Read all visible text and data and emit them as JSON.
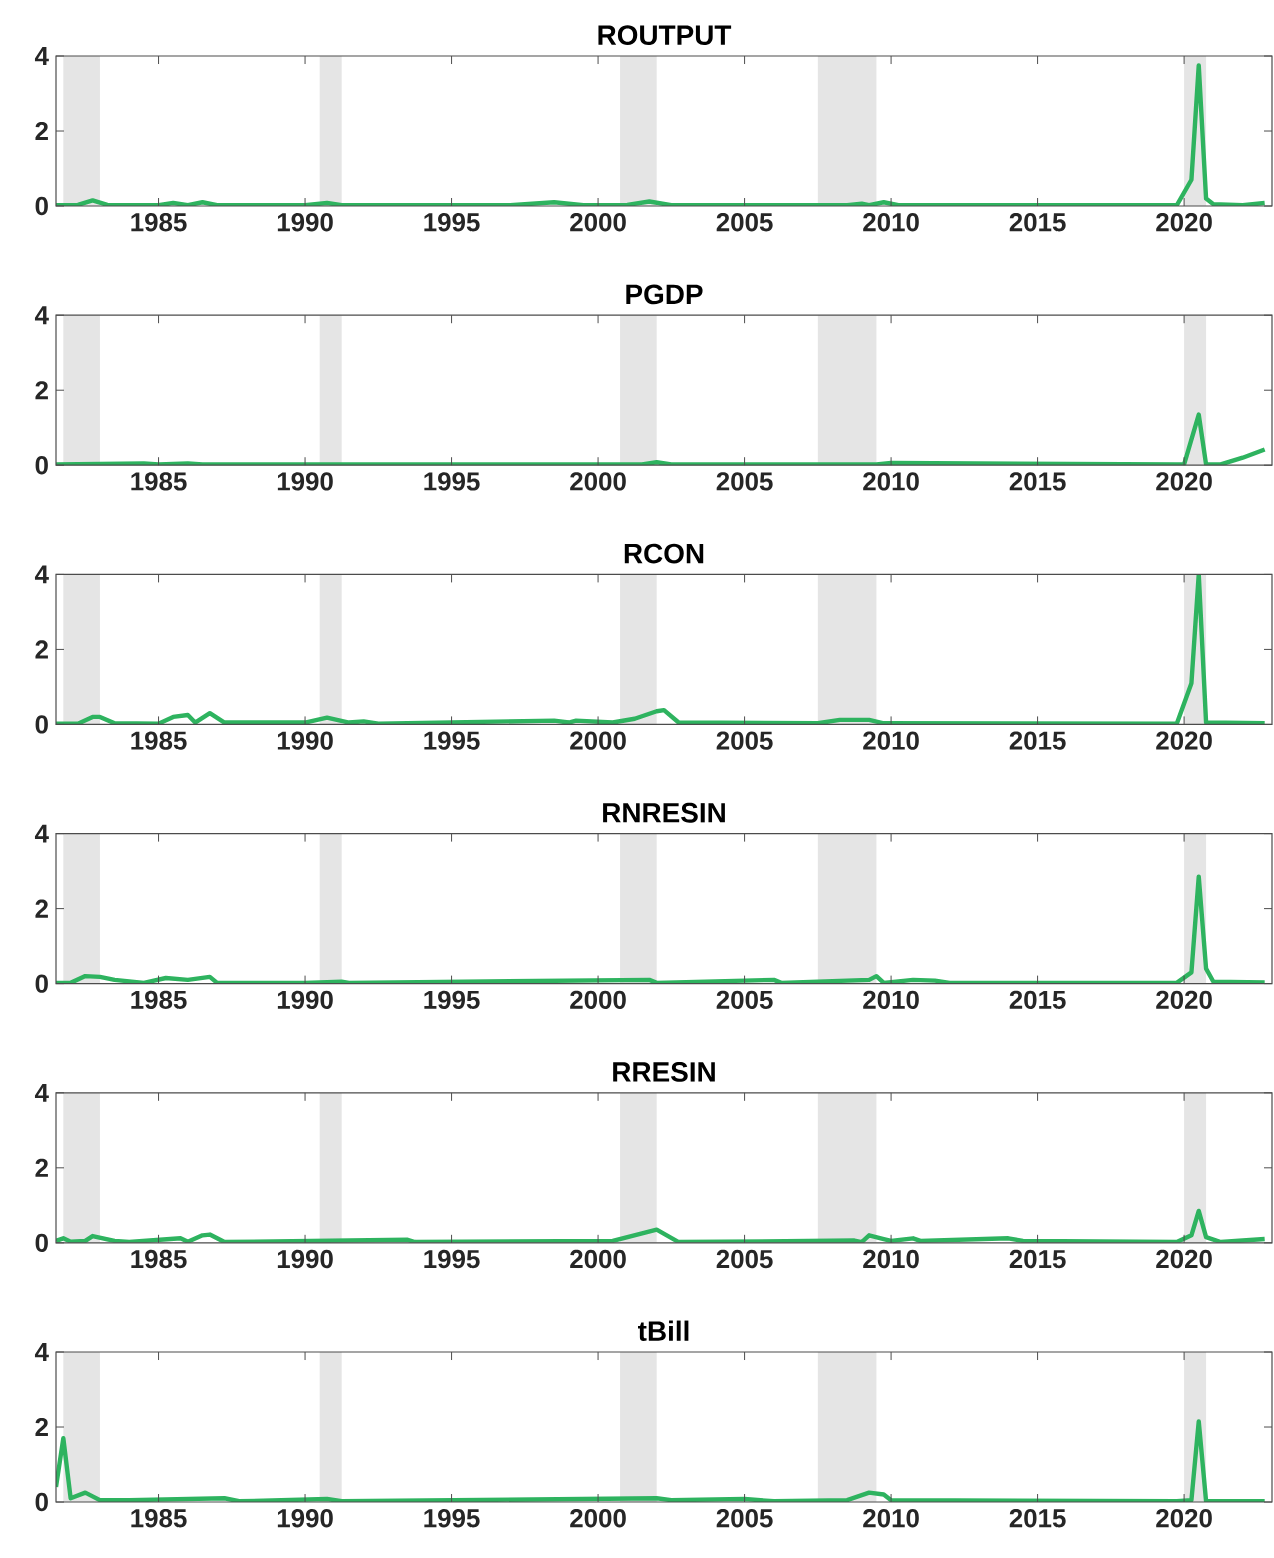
{
  "chart_data": [
    {
      "type": "line",
      "title": "ROUTPUT",
      "xlim": [
        1981.5,
        2023
      ],
      "xticks": [
        1985,
        1990,
        1995,
        2000,
        2005,
        2010,
        2015,
        2020
      ],
      "ylim": [
        0,
        4
      ],
      "yticks": [
        0,
        2,
        4
      ],
      "grid": false,
      "bands": [
        {
          "axis": "x",
          "from": 1981.75,
          "to": 1983.0,
          "color": "#e5e5e5"
        },
        {
          "axis": "x",
          "from": 1990.5,
          "to": 1991.25,
          "color": "#e5e5e5"
        },
        {
          "axis": "x",
          "from": 2000.75,
          "to": 2002.0,
          "color": "#e5e5e5"
        },
        {
          "axis": "x",
          "from": 2007.5,
          "to": 2009.5,
          "color": "#e5e5e5"
        },
        {
          "axis": "x",
          "from": 2020.0,
          "to": 2020.75,
          "color": "#e5e5e5"
        }
      ],
      "color": "#2eb35f",
      "x": [
        1981.5,
        1982.25,
        1982.75,
        1983.25,
        1985,
        1985.5,
        1986,
        1986.5,
        1987,
        1990,
        1990.75,
        1991.25,
        1997,
        1998.5,
        1999.5,
        2001,
        2001.75,
        2002.5,
        2008.5,
        2009,
        2009.25,
        2009.75,
        2010.25,
        2019.75,
        2020.25,
        2020.5,
        2020.75,
        2021,
        2022,
        2022.75
      ],
      "values": [
        0.02,
        0.03,
        0.15,
        0.03,
        0.02,
        0.08,
        0.02,
        0.1,
        0.02,
        0.02,
        0.08,
        0.02,
        0.02,
        0.1,
        0.02,
        0.03,
        0.12,
        0.02,
        0.02,
        0.06,
        0.02,
        0.1,
        0.02,
        0.02,
        0.7,
        3.75,
        0.2,
        0.05,
        0.02,
        0.08
      ]
    },
    {
      "type": "line",
      "title": "PGDP",
      "xlim": [
        1981.5,
        2023
      ],
      "xticks": [
        1985,
        1990,
        1995,
        2000,
        2005,
        2010,
        2015,
        2020
      ],
      "ylim": [
        0,
        4
      ],
      "yticks": [
        0,
        2,
        4
      ],
      "grid": false,
      "bands": [
        {
          "axis": "x",
          "from": 1981.75,
          "to": 1983.0,
          "color": "#e5e5e5"
        },
        {
          "axis": "x",
          "from": 1990.5,
          "to": 1991.25,
          "color": "#e5e5e5"
        },
        {
          "axis": "x",
          "from": 2000.75,
          "to": 2002.0,
          "color": "#e5e5e5"
        },
        {
          "axis": "x",
          "from": 2007.5,
          "to": 2009.5,
          "color": "#e5e5e5"
        },
        {
          "axis": "x",
          "from": 2020.0,
          "to": 2020.75,
          "color": "#e5e5e5"
        }
      ],
      "color": "#2eb35f",
      "x": [
        1981.5,
        1984.5,
        1985,
        1986,
        1986.5,
        2001.5,
        2002,
        2002.5,
        2009.5,
        2010,
        2019.75,
        2020.0,
        2020.5,
        2020.75,
        2021.25,
        2022,
        2022.75
      ],
      "values": [
        0.02,
        0.05,
        0.02,
        0.05,
        0.02,
        0.02,
        0.08,
        0.02,
        0.02,
        0.06,
        0.02,
        0.02,
        1.35,
        0.02,
        0.02,
        0.2,
        0.42
      ]
    },
    {
      "type": "line",
      "title": "RCON",
      "xlim": [
        1981.5,
        2023
      ],
      "xticks": [
        1985,
        1990,
        1995,
        2000,
        2005,
        2010,
        2015,
        2020
      ],
      "ylim": [
        0,
        4
      ],
      "yticks": [
        0,
        2,
        4
      ],
      "grid": false,
      "bands": [
        {
          "axis": "x",
          "from": 1981.75,
          "to": 1983.0,
          "color": "#e5e5e5"
        },
        {
          "axis": "x",
          "from": 1990.5,
          "to": 1991.25,
          "color": "#e5e5e5"
        },
        {
          "axis": "x",
          "from": 2000.75,
          "to": 2002.0,
          "color": "#e5e5e5"
        },
        {
          "axis": "x",
          "from": 2007.5,
          "to": 2009.5,
          "color": "#e5e5e5"
        },
        {
          "axis": "x",
          "from": 2020.0,
          "to": 2020.75,
          "color": "#e5e5e5"
        }
      ],
      "color": "#2eb35f",
      "x": [
        1981.5,
        1982.25,
        1982.75,
        1983,
        1983.5,
        1985,
        1985.5,
        1986,
        1986.25,
        1986.75,
        1987.25,
        1990,
        1990.75,
        1991.5,
        1992,
        1992.5,
        1998.5,
        1999,
        1999.25,
        2000.5,
        2001.25,
        2002,
        2002.25,
        2002.75,
        2007.5,
        2008.25,
        2009.25,
        2009.75,
        2019.75,
        2020.25,
        2020.5,
        2020.75,
        2022.75
      ],
      "values": [
        0.02,
        0.02,
        0.2,
        0.2,
        0.03,
        0.02,
        0.2,
        0.25,
        0.05,
        0.3,
        0.05,
        0.05,
        0.18,
        0.05,
        0.08,
        0.02,
        0.1,
        0.05,
        0.1,
        0.05,
        0.15,
        0.35,
        0.38,
        0.05,
        0.03,
        0.12,
        0.12,
        0.03,
        0.02,
        1.1,
        4,
        0.05,
        0.03
      ]
    },
    {
      "type": "line",
      "title": "RNRESIN",
      "xlim": [
        1981.5,
        2023
      ],
      "xticks": [
        1985,
        1990,
        1995,
        2000,
        2005,
        2010,
        2015,
        2020
      ],
      "ylim": [
        0,
        4
      ],
      "yticks": [
        0,
        2,
        4
      ],
      "grid": false,
      "bands": [
        {
          "axis": "x",
          "from": 1981.75,
          "to": 1983.0,
          "color": "#e5e5e5"
        },
        {
          "axis": "x",
          "from": 1990.5,
          "to": 1991.25,
          "color": "#e5e5e5"
        },
        {
          "axis": "x",
          "from": 2000.75,
          "to": 2002.0,
          "color": "#e5e5e5"
        },
        {
          "axis": "x",
          "from": 2007.5,
          "to": 2009.5,
          "color": "#e5e5e5"
        },
        {
          "axis": "x",
          "from": 2020.0,
          "to": 2020.75,
          "color": "#e5e5e5"
        }
      ],
      "color": "#2eb35f",
      "x": [
        1981.5,
        1982,
        1982.5,
        1983,
        1983.5,
        1984.5,
        1985.25,
        1986,
        1986.75,
        1987,
        1990,
        1991.25,
        1991.5,
        2001.75,
        2002,
        2006,
        2006.25,
        2009.25,
        2009.5,
        2009.75,
        2010.75,
        2011.5,
        2012,
        2019.75,
        2020.25,
        2020.5,
        2020.75,
        2021,
        2022.75
      ],
      "values": [
        0.02,
        0.02,
        0.2,
        0.18,
        0.1,
        0.02,
        0.15,
        0.1,
        0.18,
        0.02,
        0.02,
        0.05,
        0.02,
        0.1,
        0.02,
        0.1,
        0.02,
        0.1,
        0.2,
        0.02,
        0.1,
        0.08,
        0.02,
        0.02,
        0.3,
        2.85,
        0.4,
        0.05,
        0.03
      ]
    },
    {
      "type": "line",
      "title": "RRESIN",
      "xlim": [
        1981.5,
        2023
      ],
      "xticks": [
        1985,
        1990,
        1995,
        2000,
        2005,
        2010,
        2015,
        2020
      ],
      "ylim": [
        0,
        4
      ],
      "yticks": [
        0,
        2,
        4
      ],
      "grid": false,
      "bands": [
        {
          "axis": "x",
          "from": 1981.75,
          "to": 1983.0,
          "color": "#e5e5e5"
        },
        {
          "axis": "x",
          "from": 1990.5,
          "to": 1991.25,
          "color": "#e5e5e5"
        },
        {
          "axis": "x",
          "from": 2000.75,
          "to": 2002.0,
          "color": "#e5e5e5"
        },
        {
          "axis": "x",
          "from": 2007.5,
          "to": 2009.5,
          "color": "#e5e5e5"
        },
        {
          "axis": "x",
          "from": 2020.0,
          "to": 2020.75,
          "color": "#e5e5e5"
        }
      ],
      "color": "#2eb35f",
      "x": [
        1981.5,
        1981.75,
        1982,
        1982.5,
        1982.75,
        1983.5,
        1984,
        1985.75,
        1986,
        1986.5,
        1986.75,
        1987.25,
        1993.5,
        1993.75,
        2000.5,
        2001.25,
        2002,
        2002.75,
        2008.75,
        2009,
        2009.25,
        2009.75,
        2010,
        2010.75,
        2011,
        2014,
        2014.5,
        2019.75,
        2020.25,
        2020.5,
        2020.75,
        2021.25,
        2022.75
      ],
      "values": [
        0.05,
        0.12,
        0.03,
        0.05,
        0.18,
        0.05,
        0.02,
        0.12,
        0.03,
        0.2,
        0.22,
        0.02,
        0.08,
        0.02,
        0.05,
        0.2,
        0.35,
        0.02,
        0.06,
        0.02,
        0.2,
        0.1,
        0.05,
        0.12,
        0.05,
        0.12,
        0.05,
        0.02,
        0.2,
        0.85,
        0.15,
        0.02,
        0.1
      ]
    },
    {
      "type": "line",
      "title": "tBill",
      "xlim": [
        1981.5,
        2023
      ],
      "xticks": [
        1985,
        1990,
        1995,
        2000,
        2005,
        2010,
        2015,
        2020
      ],
      "ylim": [
        0,
        4
      ],
      "yticks": [
        0,
        2,
        4
      ],
      "grid": false,
      "bands": [
        {
          "axis": "x",
          "from": 1981.75,
          "to": 1983.0,
          "color": "#e5e5e5"
        },
        {
          "axis": "x",
          "from": 1990.5,
          "to": 1991.25,
          "color": "#e5e5e5"
        },
        {
          "axis": "x",
          "from": 2000.75,
          "to": 2002.0,
          "color": "#e5e5e5"
        },
        {
          "axis": "x",
          "from": 2007.5,
          "to": 2009.5,
          "color": "#e5e5e5"
        },
        {
          "axis": "x",
          "from": 2020.0,
          "to": 2020.75,
          "color": "#e5e5e5"
        }
      ],
      "color": "#2eb35f",
      "x": [
        1981.5,
        1981.75,
        1982,
        1982.5,
        1983,
        1984,
        1987.25,
        1987.75,
        1990.75,
        1991.25,
        2002,
        2002.5,
        2005,
        2006,
        2008.5,
        2009.25,
        2009.75,
        2010,
        2019.75,
        2020.25,
        2020.5,
        2020.75,
        2022.75
      ],
      "values": [
        0.4,
        1.7,
        0.1,
        0.25,
        0.05,
        0.05,
        0.1,
        0.02,
        0.08,
        0.02,
        0.1,
        0.05,
        0.08,
        0.02,
        0.05,
        0.25,
        0.2,
        0.05,
        0.02,
        0.05,
        2.15,
        0.02,
        0.02
      ]
    }
  ]
}
